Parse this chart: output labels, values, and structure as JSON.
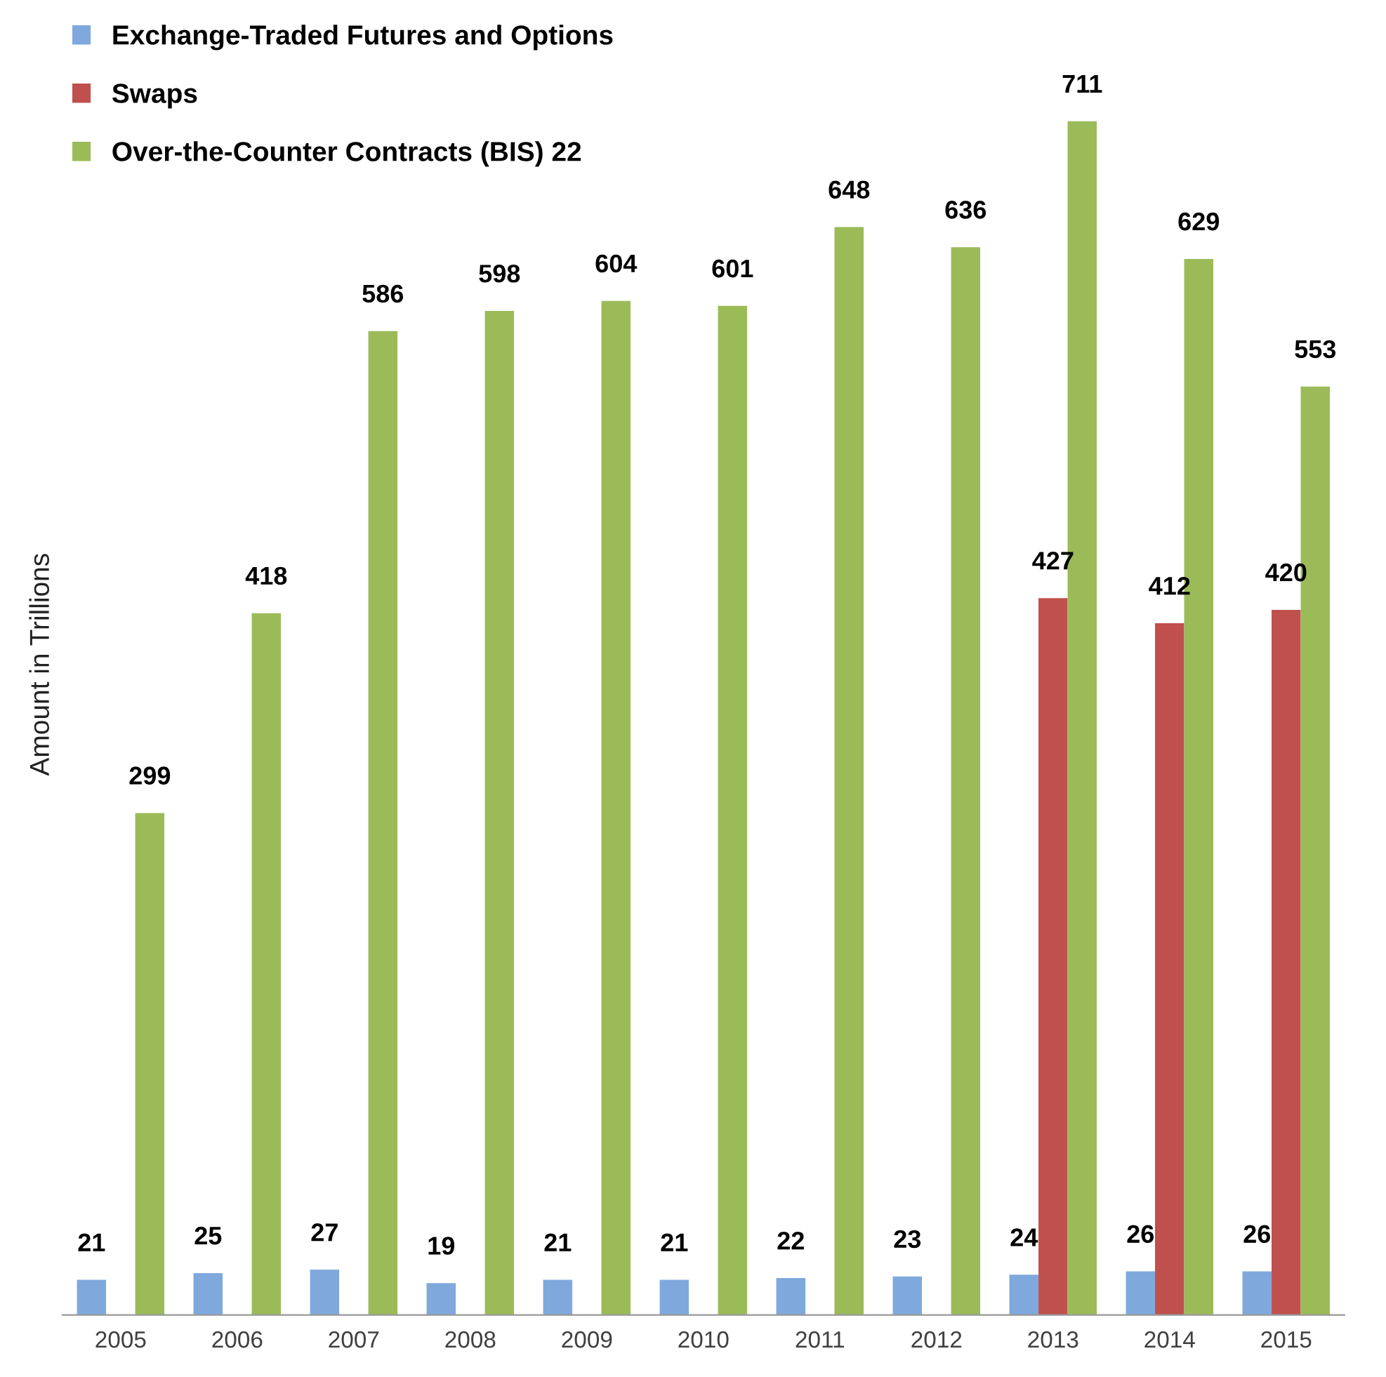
{
  "chart_data": {
    "type": "bar",
    "ylabel": "Amount in Trillions",
    "categories": [
      "2005",
      "2006",
      "2007",
      "2008",
      "2009",
      "2010",
      "2011",
      "2012",
      "2013",
      "2014",
      "2015"
    ],
    "series": [
      {
        "name": "Exchange-Traded Futures and Options",
        "color": "#7fa9dd",
        "values": [
          21,
          25,
          27,
          19,
          21,
          21,
          22,
          23,
          24,
          26,
          26
        ]
      },
      {
        "name": "Swaps",
        "color": "#c0504d",
        "values": [
          null,
          null,
          null,
          null,
          null,
          null,
          null,
          null,
          427,
          412,
          420
        ]
      },
      {
        "name": "Over-the-Counter Contracts (BIS) 22",
        "color": "#9bbb59",
        "values": [
          299,
          418,
          586,
          598,
          604,
          601,
          648,
          636,
          711,
          629,
          553
        ]
      }
    ],
    "data_labels": true,
    "legend": "top left",
    "grid": false,
    "tick_labels": "x"
  }
}
